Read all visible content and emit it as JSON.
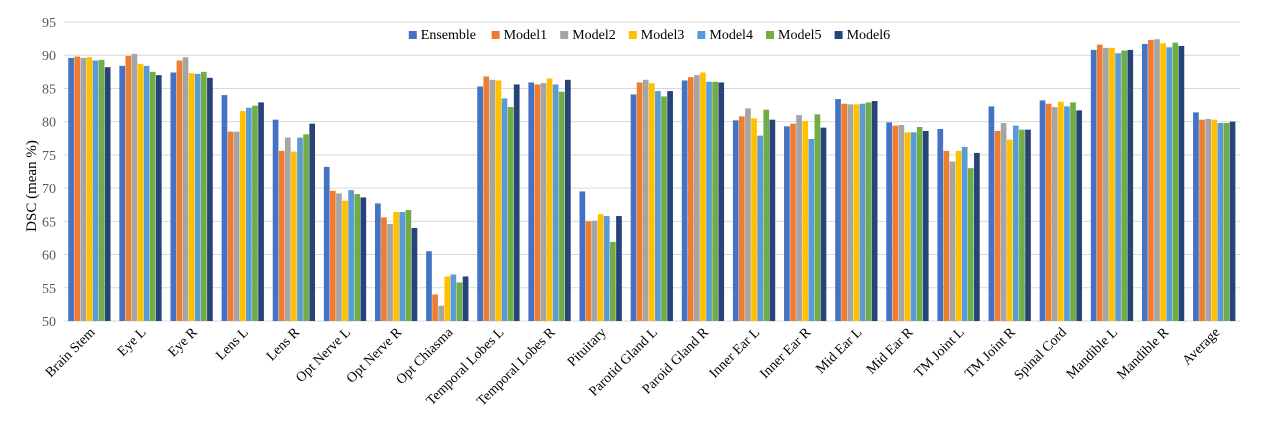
{
  "chart_data": {
    "type": "bar",
    "title": "",
    "xlabel": "",
    "ylabel": "DSC (mean %)",
    "ylim": [
      50,
      95
    ],
    "yticks": [
      50,
      55,
      60,
      65,
      70,
      75,
      80,
      85,
      90,
      95
    ],
    "grid": true,
    "legend_position": "top",
    "categories": [
      "Brain Stem",
      "Eye L",
      "Eye R",
      "Lens L",
      "Lens R",
      "Opt Nerve L",
      "Opt Nerve R",
      "Opt Chiasma",
      "Temporal Lobes L",
      "Temporal Lobes R",
      "Pituitary",
      "Parotid Gland L",
      "Paroid Gland R",
      "Inner Ear L",
      "Inner Ear R",
      "Mid Ear L",
      "Mid Ear R",
      "TM Joint L",
      "TM Joint R",
      "Spinal Cord",
      "Mandible L",
      "Mandible R",
      "Average"
    ],
    "series": [
      {
        "name": "Ensemble",
        "color": "#4472C4",
        "values": [
          89.6,
          88.4,
          87.4,
          84.0,
          80.3,
          73.2,
          67.7,
          60.5,
          85.3,
          85.9,
          69.5,
          84.1,
          86.2,
          80.2,
          79.3,
          83.4,
          79.9,
          78.9,
          82.3,
          83.2,
          90.8,
          91.7,
          81.4
        ]
      },
      {
        "name": "Model1",
        "color": "#ED7D31",
        "values": [
          89.8,
          89.9,
          89.2,
          78.5,
          75.6,
          69.6,
          65.6,
          54.0,
          86.8,
          85.6,
          65.0,
          85.9,
          86.7,
          80.8,
          79.7,
          82.7,
          79.4,
          75.6,
          78.6,
          82.7,
          91.6,
          92.3,
          80.3
        ]
      },
      {
        "name": "Model2",
        "color": "#A5A5A5",
        "values": [
          89.6,
          90.2,
          89.7,
          78.5,
          77.6,
          69.2,
          64.6,
          52.3,
          86.3,
          85.8,
          65.1,
          86.3,
          87.0,
          82.0,
          81.0,
          82.6,
          79.5,
          74.0,
          79.8,
          82.2,
          91.1,
          92.4,
          80.4
        ]
      },
      {
        "name": "Model3",
        "color": "#FFC000",
        "values": [
          89.7,
          88.7,
          87.3,
          81.6,
          75.5,
          68.1,
          66.4,
          56.7,
          86.2,
          86.5,
          66.1,
          85.8,
          87.4,
          80.5,
          80.1,
          82.6,
          78.4,
          75.6,
          77.3,
          83.0,
          91.1,
          91.8,
          80.3
        ]
      },
      {
        "name": "Model4",
        "color": "#5B9BD5",
        "values": [
          89.2,
          88.4,
          87.2,
          82.1,
          77.6,
          69.7,
          66.4,
          57.0,
          83.5,
          85.6,
          65.8,
          84.6,
          86.0,
          77.9,
          77.4,
          82.7,
          78.4,
          76.2,
          79.4,
          82.3,
          90.3,
          91.2,
          79.8
        ]
      },
      {
        "name": "Model5",
        "color": "#70AD47",
        "values": [
          89.3,
          87.5,
          87.5,
          82.4,
          78.1,
          69.1,
          66.7,
          55.8,
          82.2,
          84.5,
          61.9,
          83.8,
          86.0,
          81.8,
          81.1,
          82.9,
          79.2,
          73.0,
          78.8,
          82.9,
          90.7,
          91.9,
          79.8
        ]
      },
      {
        "name": "Model6",
        "color": "#264478",
        "values": [
          88.2,
          87.0,
          86.6,
          82.9,
          79.7,
          68.6,
          64.0,
          56.7,
          85.6,
          86.3,
          65.8,
          84.6,
          85.9,
          80.3,
          79.1,
          83.1,
          78.6,
          75.3,
          78.8,
          81.7,
          90.8,
          91.4,
          80.0
        ]
      }
    ]
  }
}
